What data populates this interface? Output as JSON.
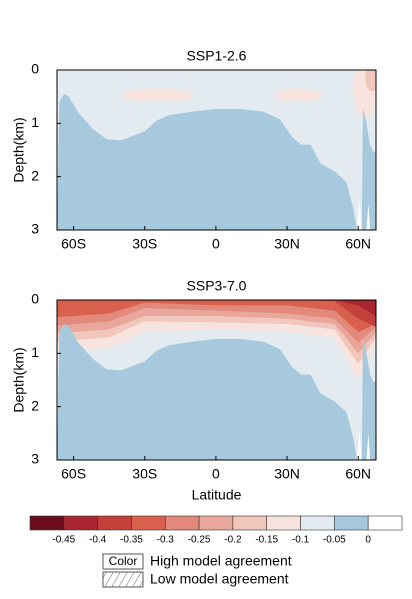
{
  "chart_data": [
    {
      "type": "contour",
      "title": "SSP1-2.6",
      "ylabel": "Depth(km)",
      "ylim": [
        0,
        3
      ],
      "y_inverted": true,
      "yticks": [
        0,
        1,
        2,
        3
      ],
      "xlim": [
        -67,
        67.5
      ],
      "xticks": [
        {
          "value": -60,
          "label": "60S"
        },
        {
          "value": -30,
          "label": "30S"
        },
        0,
        {
          "value": 30,
          "label": "30N"
        },
        {
          "value": 60,
          "label": "60N"
        }
      ]
    },
    {
      "type": "contour",
      "title": "SSP3-7.0",
      "ylabel": "Depth(km)",
      "xlabel": "Latitude",
      "ylim": [
        0,
        3
      ],
      "y_inverted": true,
      "yticks": [
        0,
        1,
        2,
        3
      ],
      "xlim": [
        -67,
        67.5
      ],
      "xticks": [
        {
          "value": -60,
          "label": "60S"
        },
        {
          "value": -30,
          "label": "30S"
        },
        0,
        {
          "value": 30,
          "label": "30N"
        },
        {
          "value": 60,
          "label": "60N"
        }
      ]
    }
  ],
  "colorbar": {
    "ticks": [
      -0.45,
      -0.4,
      -0.35,
      -0.3,
      -0.25,
      -0.2,
      -0.15,
      -0.1,
      -0.05,
      0
    ],
    "colors": [
      "#6b0d1f",
      "#a8262f",
      "#c3403b",
      "#d8604c",
      "#e2897b",
      "#e9a79b",
      "#f1c6bc",
      "#f8e4de",
      "#e3ebf1",
      "#a6c9de",
      "#ffffff"
    ]
  },
  "legend": {
    "swatch": "Color",
    "items": [
      "High model agreement",
      "Low model agreement"
    ]
  }
}
